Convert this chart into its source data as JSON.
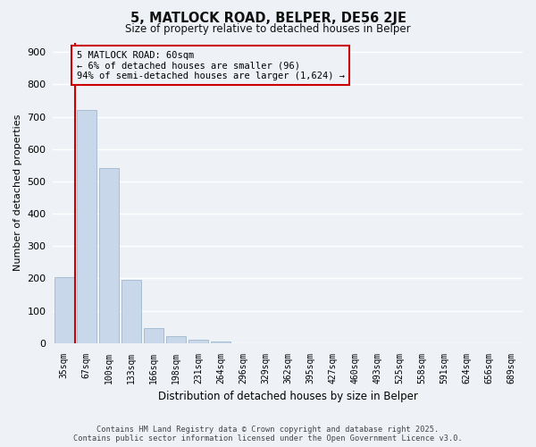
{
  "title": "5, MATLOCK ROAD, BELPER, DE56 2JE",
  "subtitle": "Size of property relative to detached houses in Belper",
  "xlabel": "Distribution of detached houses by size in Belper",
  "ylabel": "Number of detached properties",
  "bar_labels": [
    "35sqm",
    "67sqm",
    "100sqm",
    "133sqm",
    "166sqm",
    "198sqm",
    "231sqm",
    "264sqm",
    "296sqm",
    "329sqm",
    "362sqm",
    "395sqm",
    "427sqm",
    "460sqm",
    "493sqm",
    "525sqm",
    "558sqm",
    "591sqm",
    "624sqm",
    "656sqm",
    "689sqm"
  ],
  "bar_values": [
    205,
    720,
    542,
    196,
    47,
    20,
    11,
    5,
    0,
    0,
    0,
    0,
    0,
    0,
    0,
    0,
    0,
    0,
    0,
    0,
    0
  ],
  "bar_color": "#c8d8ea",
  "bar_edge_color": "#a0b8cc",
  "ylim": [
    0,
    930
  ],
  "yticks": [
    0,
    100,
    200,
    300,
    400,
    500,
    600,
    700,
    800,
    900
  ],
  "vline_color": "#cc0000",
  "annotation_title": "5 MATLOCK ROAD: 60sqm",
  "annotation_line2": "← 6% of detached houses are smaller (96)",
  "annotation_line3": "94% of semi-detached houses are larger (1,624) →",
  "annotation_box_color": "#cc0000",
  "background_color": "#eef2f7",
  "grid_color": "#ffffff",
  "footer_line1": "Contains HM Land Registry data © Crown copyright and database right 2025.",
  "footer_line2": "Contains public sector information licensed under the Open Government Licence v3.0."
}
